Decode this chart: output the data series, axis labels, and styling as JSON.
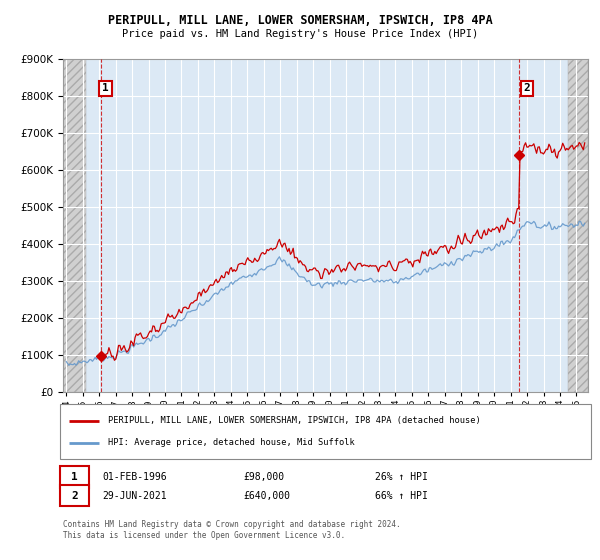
{
  "title1": "PERIPULL, MILL LANE, LOWER SOMERSHAM, IPSWICH, IP8 4PA",
  "title2": "Price paid vs. HM Land Registry's House Price Index (HPI)",
  "background_color": "#ffffff",
  "chart_bg_color": "#dce9f5",
  "grid_color": "#ffffff",
  "hatch_color": "#c8c8c8",
  "line1_color": "#cc0000",
  "line2_color": "#6699cc",
  "sale1_year": 1996.08,
  "sale1_price": 98000,
  "sale2_year": 2021.49,
  "sale2_price": 640000,
  "ylim_min": 0,
  "ylim_max": 900000,
  "xlim_min": 1993.8,
  "xlim_max": 2025.7,
  "hatch_left_end": 1995.17,
  "hatch_right_start": 2024.5,
  "legend1_text": "PERIPULL, MILL LANE, LOWER SOMERSHAM, IPSWICH, IP8 4PA (detached house)",
  "legend2_text": "HPI: Average price, detached house, Mid Suffolk",
  "table_row1": [
    "1",
    "01-FEB-1996",
    "£98,000",
    "26% ↑ HPI"
  ],
  "table_row2": [
    "2",
    "29-JUN-2021",
    "£640,000",
    "66% ↑ HPI"
  ],
  "footer1": "Contains HM Land Registry data © Crown copyright and database right 2024.",
  "footer2": "This data is licensed under the Open Government Licence v3.0."
}
